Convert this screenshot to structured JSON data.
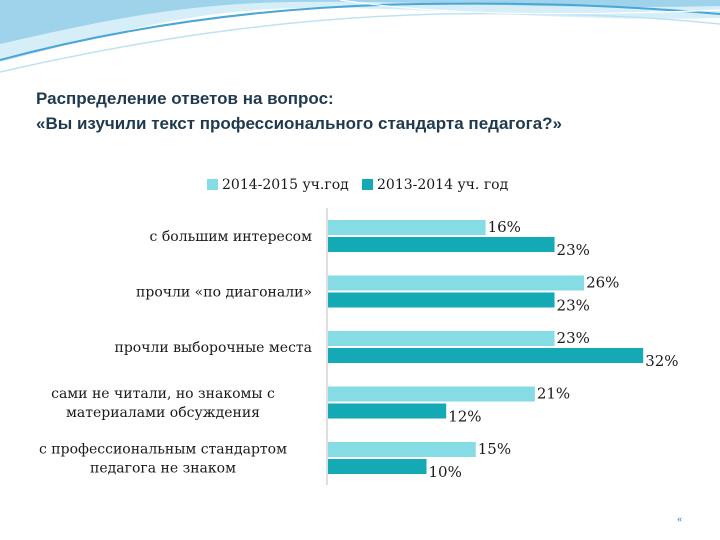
{
  "title": {
    "line1": "Распределение ответов на вопрос:",
    "line2": "«Вы изучили текст профессионального стандарта педагога?»"
  },
  "page_number": "«",
  "colors": {
    "series_2014_2015": "#86dce4",
    "series_2013_2014": "#13a9b5",
    "text": "#1a1a1a",
    "title": "#1f3a4f",
    "wave_light": "#d5eef8",
    "wave_mid": "#9fd3ec",
    "wave_dark": "#4aa6d6"
  },
  "chart_data": {
    "type": "bar",
    "orientation": "horizontal",
    "categories": [
      [
        "с большим интересом"
      ],
      [
        "прочли «по диагонали»"
      ],
      [
        "прочли выборочные места"
      ],
      [
        "сами не читали, но знакомы с",
        "материалами обсуждения"
      ],
      [
        "с профессиональным стандартом",
        "педагога не знаком"
      ]
    ],
    "series": [
      {
        "name": "2014-2015 уч.год",
        "values": [
          16,
          26,
          23,
          21,
          15
        ],
        "labels": [
          "16%",
          "26%",
          "23%",
          "21%",
          "15%"
        ]
      },
      {
        "name": "2013-2014 уч. год",
        "values": [
          23,
          23,
          32,
          12,
          10
        ],
        "labels": [
          "23%",
          "23%",
          "32%",
          "12%",
          "10%"
        ]
      }
    ],
    "xlim": [
      0,
      35
    ],
    "legend_position": "top",
    "grid": false
  }
}
